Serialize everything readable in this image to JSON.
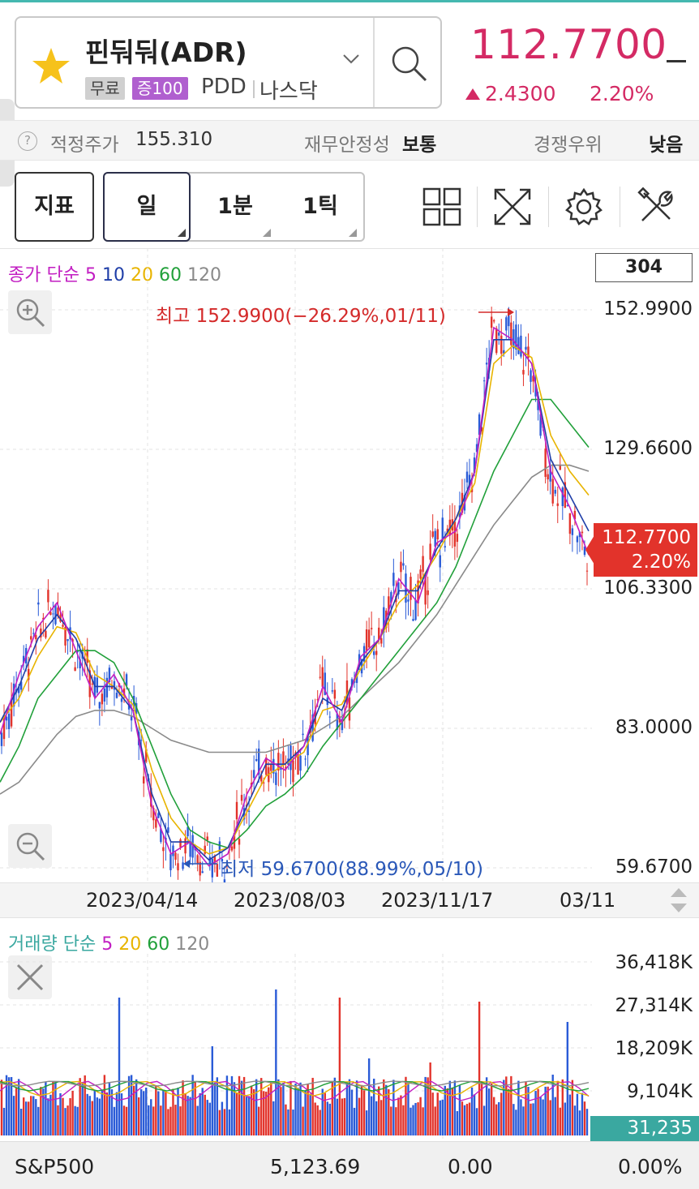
{
  "header": {
    "stock_name": "핀둬둬(ADR)",
    "badge_free": "무료",
    "badge_margin": "증100",
    "ticker": "PDD",
    "market": "나스닥",
    "price": "112.7700",
    "change": "2.4300",
    "change_pct": "2.20%",
    "favorite_icon": "star-icon",
    "accent_color": "#d42a64"
  },
  "info": {
    "fair_price_label": "적정주가",
    "fair_price_value": "155.310",
    "financial_label": "재무안정성",
    "financial_value": "보통",
    "competitive_label": "경쟁우위",
    "competitive_value": "낮음"
  },
  "toolbar": {
    "indicator_label": "지표",
    "periods": [
      "일",
      "1분",
      "1틱"
    ],
    "selected_period": "일",
    "icons": [
      "layout-grid-icon",
      "fullscreen-icon",
      "settings-icon",
      "tools-icon"
    ]
  },
  "price_chart": {
    "legend_prefix": "종가 단순",
    "ma_periods": [
      {
        "label": "5",
        "color": "#c21ec2"
      },
      {
        "label": "10",
        "color": "#1f3ea8"
      },
      {
        "label": "20",
        "color": "#e8b400"
      },
      {
        "label": "60",
        "color": "#21a03a"
      },
      {
        "label": "120",
        "color": "#8a8a8a"
      }
    ],
    "bar_count": "304",
    "y_labels": [
      "152.9900",
      "129.6600",
      "106.3300",
      "83.0000",
      "59.6700"
    ],
    "last_price_tag": "112.7700",
    "last_pct_tag": "2.20%",
    "high_label": "최고 152.9900(−26.29%,01/11)",
    "low_label": "최저 59.6700(88.99%,05/10)",
    "x_labels": [
      "2023/04/14",
      "2023/08/03",
      "2023/11/17",
      "03/11"
    ]
  },
  "volume_chart": {
    "legend_prefix": "거래량 단순",
    "ma_periods": [
      {
        "label": "5",
        "color": "#c21ec2"
      },
      {
        "label": "20",
        "color": "#e8b400"
      },
      {
        "label": "60",
        "color": "#21a03a"
      },
      {
        "label": "120",
        "color": "#8a8a8a"
      }
    ],
    "y_labels": [
      "36,418K",
      "27,314K",
      "18,209K",
      "9,104K"
    ],
    "last_volume_tag": "31,235"
  },
  "footer": {
    "index_name": "S&P500",
    "index_value": "5,123.69",
    "index_change": "0.00",
    "index_pct": "0.00%"
  },
  "chart_data": {
    "type": "line",
    "y_range": [
      59.67,
      152.99
    ],
    "ma_series": [
      {
        "name": "5",
        "color": "#c21ec2",
        "values": [
          82,
          92,
          100,
          104,
          96,
          88,
          92,
          86,
          70,
          62,
          64,
          60,
          62,
          72,
          78,
          76,
          80,
          90,
          84,
          95,
          98,
          108,
          104,
          114,
          116,
          126,
          150,
          148,
          144,
          126,
          120,
          112
        ]
      },
      {
        "name": "10",
        "color": "#1f3ea8",
        "values": [
          84,
          90,
          98,
          102,
          98,
          90,
          90,
          86,
          72,
          64,
          64,
          61,
          63,
          70,
          77,
          77,
          80,
          88,
          86,
          94,
          98,
          106,
          106,
          113,
          118,
          126,
          148,
          148,
          144,
          128,
          122,
          116
        ]
      },
      {
        "name": "20",
        "color": "#e8b400",
        "values": [
          84,
          88,
          95,
          100,
          99,
          92,
          90,
          87,
          76,
          68,
          64,
          62,
          63,
          69,
          75,
          77,
          79,
          86,
          87,
          93,
          98,
          104,
          107,
          112,
          118,
          124,
          144,
          147,
          145,
          132,
          126,
          122
        ]
      },
      {
        "name": "60",
        "color": "#21a03a",
        "values": [
          74,
          80,
          88,
          92,
          96,
          96,
          94,
          88,
          80,
          72,
          66,
          64,
          63,
          66,
          70,
          72,
          75,
          80,
          84,
          88,
          92,
          96,
          100,
          104,
          110,
          118,
          126,
          132,
          138,
          138,
          134,
          130
        ]
      },
      {
        "name": "120",
        "color": "#8a8a8a",
        "values": [
          72,
          74,
          78,
          82,
          85,
          86,
          86,
          85,
          83,
          81,
          80,
          79,
          79,
          79,
          79,
          80,
          81,
          83,
          85,
          88,
          91,
          94,
          98,
          102,
          107,
          112,
          117,
          121,
          125,
          127,
          127,
          126
        ]
      }
    ]
  }
}
